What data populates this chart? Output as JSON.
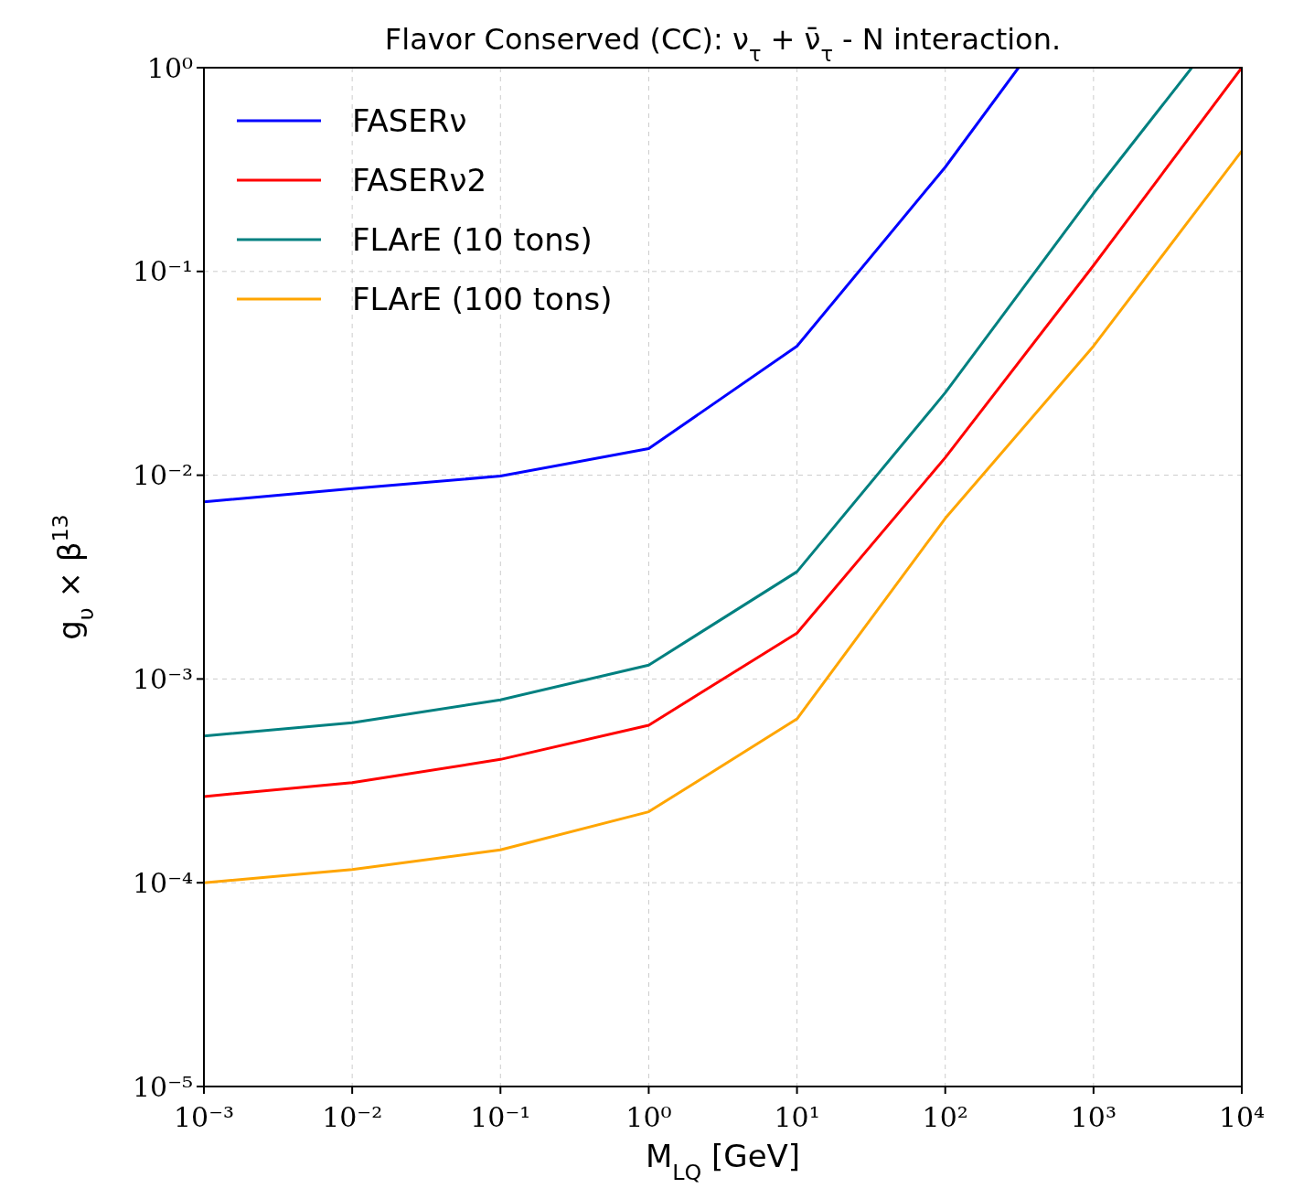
{
  "chart_data": {
    "type": "line",
    "title": "Flavor Conserved (CC): ν$_{τ}$ + ν̄$_{τ}$ - N interaction.",
    "xlabel": "M$_{LQ}$ [GeV]",
    "ylabel": "g$_{υ}$ × β$^{13}$",
    "log": "xy",
    "grid": true,
    "legend": "top left",
    "line_style": "solid",
    "marker": "none",
    "xlim": [
      0.001,
      10000
    ],
    "ylim": [
      1e-05,
      1
    ],
    "xticks": [
      {
        "value": 0.001,
        "label": "10⁻³"
      },
      {
        "value": 0.01,
        "label": "10⁻²"
      },
      {
        "value": 0.1,
        "label": "10⁻¹"
      },
      {
        "value": 1,
        "label": "10⁰"
      },
      {
        "value": 10,
        "label": "10¹"
      },
      {
        "value": 100,
        "label": "10²"
      },
      {
        "value": 1000,
        "label": "10³"
      },
      {
        "value": 10000,
        "label": "10⁴"
      }
    ],
    "yticks": [
      {
        "value": 1e-05,
        "label": "10⁻⁵"
      },
      {
        "value": 0.0001,
        "label": "10⁻⁴"
      },
      {
        "value": 0.001,
        "label": "10⁻³"
      },
      {
        "value": 0.01,
        "label": "10⁻²"
      },
      {
        "value": 0.1,
        "label": "10⁻¹"
      },
      {
        "value": 1,
        "label": "10⁰"
      }
    ],
    "series": [
      {
        "name": "FASERν",
        "color": "#0000ff",
        "x": [
          0.001,
          0.01,
          0.1,
          1,
          10,
          100,
          312
        ],
        "values": [
          0.0074,
          0.0086,
          0.0099,
          0.0135,
          0.043,
          0.325,
          1
        ]
      },
      {
        "name": "FASERν2",
        "color": "#ff0000",
        "x": [
          0.001,
          0.01,
          0.1,
          1,
          10,
          100,
          1000,
          10000
        ],
        "values": [
          0.000265,
          0.00031,
          0.000403,
          0.000593,
          0.00168,
          0.0122,
          0.107,
          1
        ]
      },
      {
        "name": "FLArE (10 tons)",
        "color": "#008080",
        "x": [
          0.001,
          0.01,
          0.1,
          1,
          10,
          100,
          1000,
          4600
        ],
        "values": [
          0.000525,
          0.00061,
          0.00079,
          0.00117,
          0.00336,
          0.0254,
          0.242,
          1
        ]
      },
      {
        "name": "FLArE (100 tons)",
        "color": "#ffa500",
        "x": [
          0.001,
          0.01,
          0.1,
          1,
          10,
          100,
          1000,
          10000
        ],
        "values": [
          0.0001,
          0.000116,
          0.000145,
          0.000223,
          0.000637,
          0.00614,
          0.043,
          0.39
        ]
      }
    ]
  }
}
